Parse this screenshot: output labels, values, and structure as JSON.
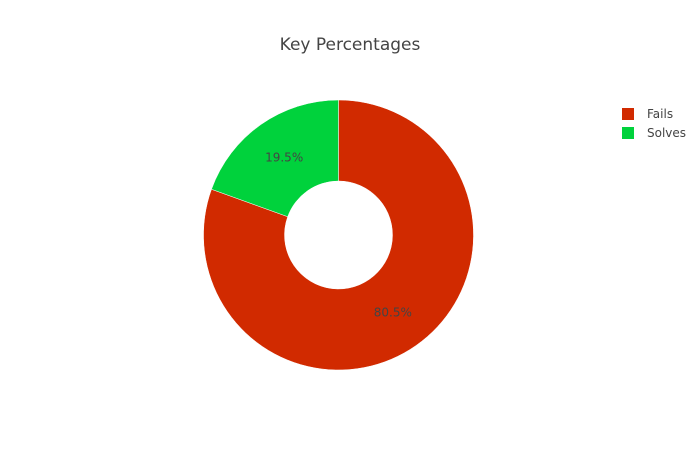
{
  "chart_data": {
    "type": "pie",
    "title": "Key Percentages",
    "hole": true,
    "legend_position": "top-right",
    "labels": [
      "Fails",
      "Solves"
    ],
    "values": [
      80.5,
      19.5
    ],
    "value_labels": [
      "80.5%",
      "19.5%"
    ],
    "colors": [
      "#d12a00",
      "#00d23c"
    ]
  }
}
